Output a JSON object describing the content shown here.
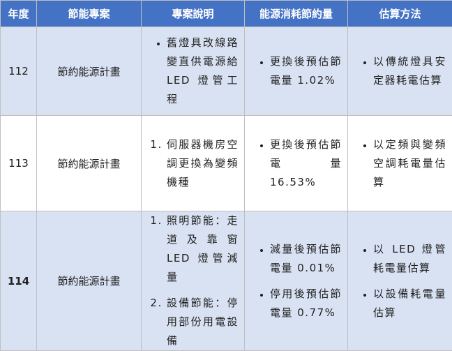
{
  "table": {
    "header": [
      "年度",
      "節能專案",
      "專案說明",
      "能源消耗節約量",
      "估算方法"
    ],
    "rows": [
      {
        "year": "112",
        "plan": "節約能源計畫",
        "description": {
          "style": "bullet",
          "items": [
            "舊燈具改線路變直供電源給 LED 燈管工程"
          ]
        },
        "savings": [
          "更換後預估節電量 1.02%"
        ],
        "method": [
          "以傳統燈具安定器耗電估算"
        ]
      },
      {
        "year": "113",
        "plan": "節約能源計畫",
        "description": {
          "style": "numbered",
          "items": [
            "伺服器機房空調更換為變頻機種"
          ]
        },
        "savings": [
          "更換後預估節電量 16.53%"
        ],
        "method": [
          "以定頻與變頻空調耗電量估算"
        ]
      },
      {
        "year": "114",
        "plan": "節約能源計畫",
        "description": {
          "style": "numbered",
          "items": [
            "照明節能：走道及靠窗 LED 燈管減量",
            "設備節能：停用部份用電設備"
          ]
        },
        "savings": [
          "減量後預估節電量 0.01%",
          "停用後預估節電量 0.77%"
        ],
        "method": [
          "以 LED 燈管耗電量估算",
          "以設備耗電量估算"
        ]
      }
    ]
  }
}
